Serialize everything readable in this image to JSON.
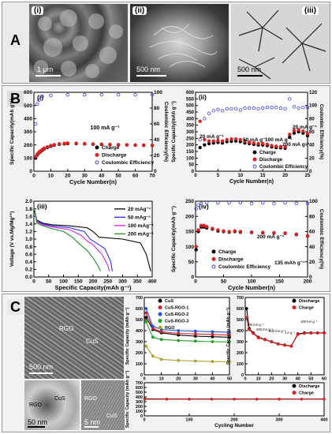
{
  "panelA": {
    "letter": "A",
    "images": [
      {
        "label": "(i)",
        "scale": "1 μm"
      },
      {
        "label": "(ii)",
        "scale": "500 nm"
      },
      {
        "label": "(iii)",
        "scale": "500 nm"
      }
    ]
  },
  "panelB": {
    "letter": "B",
    "i": {
      "label": "(i)",
      "xlabel": "Cycle Number(n)",
      "ylabel": "Specific Capacity(mAh g⁻¹)",
      "y2label": "Coulombic Efficiency(%)",
      "annotation": "100 mA g⁻¹",
      "legend": [
        "Charge",
        "Discharge",
        "Coulombic Efficiency"
      ],
      "xticks": [
        "0",
        "10",
        "20",
        "30",
        "40",
        "50",
        "60",
        "70"
      ],
      "yticks": [
        "0",
        "100",
        "200",
        "300",
        "400",
        "500",
        "600"
      ],
      "y2ticks": [
        "0",
        "20",
        "40",
        "60",
        "80",
        "100"
      ]
    },
    "ii": {
      "label": "(ii)",
      "xlabel": "Cycle Number(n)",
      "ylabel": "Specific Capacity(mAh g⁻¹)",
      "y2label": "Coulombic Efficiency(%)",
      "rates": [
        "20 mA g⁻¹",
        "50 mA g⁻¹",
        "100 mA g⁻¹",
        "200 mA g⁻¹",
        "20 mA g⁻¹"
      ],
      "legend": [
        "Charge",
        "Discharge",
        "Coulombic Efficiency"
      ],
      "xticks": [
        "0",
        "5",
        "10",
        "15",
        "20",
        "25"
      ],
      "yticks": [
        "0",
        "50",
        "100",
        "150",
        "200",
        "250",
        "300",
        "350",
        "400",
        "450",
        "500",
        "550",
        "600"
      ],
      "y2ticks": [
        "0",
        "20",
        "40",
        "60",
        "80",
        "100",
        "120"
      ]
    },
    "iii": {
      "label": "(iii)",
      "xlabel": "Specific Capacity(mAh g⁻¹)",
      "ylabel": "Voltage (V vs.Mg/Mg²⁺)",
      "legend": [
        "20 mAg⁻¹",
        "50 mAg⁻¹",
        "100 mAg⁻¹",
        "200 mAg⁻¹"
      ],
      "xticks": [
        "0",
        "50",
        "100",
        "150",
        "200",
        "250",
        "300",
        "350",
        "400"
      ],
      "yticks": [
        "0.0",
        "0.2",
        "0.4",
        "0.6",
        "0.8",
        "1.0",
        "1.2",
        "1.4",
        "1.6",
        "1.8",
        "2.0"
      ]
    },
    "iv": {
      "label": "(iv)",
      "xlabel": "Cycle Number(n)",
      "ylabel": "Specific Capacity(mAh g⁻¹)",
      "y2label": "Coulombic Efficiency(%)",
      "annotation1": "200 mA g⁻¹",
      "annotation2": "135 mAh g⁻¹",
      "legend": [
        "Charge",
        "Discharge",
        "Coulombic Efficiency"
      ],
      "xticks": [
        "0",
        "50",
        "100",
        "150",
        "200"
      ],
      "yticks": [
        "0",
        "50",
        "100",
        "150",
        "200",
        "250"
      ],
      "y2ticks": [
        "0",
        "20",
        "40",
        "60",
        "80",
        "100"
      ]
    }
  },
  "panelC": {
    "letter": "C",
    "sem": {
      "labels": [
        "RGO",
        "CuS"
      ],
      "scale": "500 nm"
    },
    "tem1": {
      "labels": [
        "RGO",
        "CuS"
      ],
      "scale": "50 nm"
    },
    "tem2": {
      "labels": [
        "RGO",
        "CuS"
      ],
      "scale": "5 nm"
    },
    "c1": {
      "xlabel": "Cycling Number",
      "ylabel": "Specific Capacity (mAh g⁻¹)",
      "legend": [
        "CuS",
        "CuS-RGO-1",
        "CuS-RGO-2",
        "CuS-RGO-3",
        "RGO"
      ],
      "xticks": [
        "0",
        "10",
        "20",
        "30",
        "40",
        "50"
      ],
      "yticks": [
        "0",
        "100",
        "200",
        "300",
        "400",
        "500",
        "600",
        "700"
      ]
    },
    "c2": {
      "xlabel": "Cycling Number",
      "ylabel": "Specific Capacity (mAh g⁻¹)",
      "legend": [
        "Discharge",
        "Charge"
      ],
      "rates": [
        "100 mA g⁻¹",
        "200 mA g⁻¹",
        "500 mA g⁻¹",
        "1 A g⁻¹",
        "100 mA g⁻¹"
      ],
      "xticks": [
        "0",
        "10",
        "20",
        "30",
        "40",
        "50",
        "60"
      ],
      "yticks": [
        "0",
        "100",
        "200",
        "300",
        "400",
        "500",
        "600",
        "700"
      ]
    },
    "c3": {
      "xlabel": "Cycling Number",
      "ylabel": "Specific Capacity (mAh g⁻¹)",
      "legend": [
        "Discharge",
        "Charge"
      ],
      "xticks": [
        "0",
        "100",
        "200",
        "300",
        "400"
      ],
      "yticks": [
        "0",
        "100",
        "200",
        "300",
        "400",
        "500",
        "600",
        "700"
      ]
    }
  },
  "chart_data": [
    {
      "id": "B-i",
      "type": "scatter",
      "xlim": [
        0,
        70
      ],
      "ylim": [
        0,
        600
      ],
      "y2lim": [
        0,
        100
      ],
      "series": [
        {
          "name": "Charge",
          "color": "#000000",
          "x": [
            1,
            2,
            3,
            4,
            5,
            6,
            8,
            10,
            12,
            15,
            18,
            20,
            25,
            30,
            35,
            40,
            45,
            50,
            55,
            60,
            65,
            70
          ],
          "y": [
            100,
            125,
            140,
            150,
            160,
            170,
            180,
            190,
            198,
            205,
            208,
            210,
            210,
            208,
            205,
            204,
            202,
            200,
            200,
            198,
            197,
            196
          ]
        },
        {
          "name": "Discharge",
          "color": "#e02020",
          "x": [
            1,
            2,
            3,
            4,
            5,
            6,
            8,
            10,
            12,
            15,
            18,
            20,
            25,
            30,
            35,
            40,
            45,
            50,
            55,
            60,
            65,
            70
          ],
          "y": [
            110,
            130,
            145,
            155,
            165,
            175,
            185,
            195,
            202,
            208,
            212,
            214,
            213,
            210,
            207,
            206,
            204,
            202,
            201,
            200,
            199,
            198
          ]
        },
        {
          "name": "Coulombic Efficiency",
          "color": "#4040e0",
          "axis": "y2",
          "x": [
            1,
            2,
            3,
            5,
            10,
            20,
            30,
            40,
            50,
            60,
            70
          ],
          "y": [
            60,
            85,
            90,
            95,
            96,
            97,
            97,
            97,
            97,
            97,
            97
          ]
        }
      ]
    },
    {
      "id": "B-ii",
      "type": "scatter",
      "xlim": [
        0,
        25
      ],
      "ylim": [
        0,
        600
      ],
      "y2lim": [
        0,
        120
      ],
      "series": [
        {
          "name": "Charge",
          "color": "#000000",
          "x": [
            1,
            2,
            3,
            4,
            5,
            6,
            7,
            8,
            9,
            10,
            11,
            12,
            13,
            14,
            15,
            16,
            17,
            18,
            19,
            20,
            21,
            22,
            23,
            24,
            25
          ],
          "y": [
            180,
            200,
            210,
            215,
            220,
            215,
            225,
            228,
            230,
            225,
            215,
            210,
            205,
            200,
            200,
            195,
            185,
            180,
            178,
            175,
            260,
            290,
            300,
            290,
            270
          ]
        },
        {
          "name": "Discharge",
          "color": "#e02020",
          "x": [
            1,
            2,
            3,
            4,
            5,
            6,
            7,
            8,
            9,
            10,
            11,
            12,
            13,
            14,
            15,
            16,
            17,
            18,
            19,
            20,
            21,
            22,
            23,
            24,
            25
          ],
          "y": [
            380,
            240,
            230,
            230,
            232,
            230,
            240,
            245,
            245,
            240,
            230,
            220,
            215,
            210,
            210,
            205,
            195,
            190,
            188,
            185,
            280,
            310,
            315,
            305,
            285
          ]
        },
        {
          "name": "Coulombic Efficiency",
          "color": "#4040e0",
          "axis": "y2",
          "x": [
            1,
            2,
            3,
            4,
            5,
            6,
            7,
            8,
            9,
            10,
            11,
            12,
            13,
            14,
            15,
            16,
            17,
            18,
            19,
            20,
            21,
            22,
            23,
            24,
            25
          ],
          "y": [
            48,
            80,
            88,
            92,
            94,
            92,
            95,
            95,
            95,
            93,
            96,
            96,
            96,
            95,
            96,
            97,
            97,
            97,
            96,
            95,
            110,
            98,
            96,
            97,
            97
          ]
        }
      ]
    },
    {
      "id": "B-iii",
      "type": "line",
      "xlim": [
        0,
        400
      ],
      "ylim": [
        0,
        2.0
      ],
      "series": [
        {
          "name": "20 mAg⁻¹",
          "color": "#000000",
          "x": [
            0,
            10,
            30,
            60,
            120,
            180,
            200,
            220,
            300,
            360,
            380,
            390,
            395
          ],
          "y": [
            1.8,
            1.5,
            1.42,
            1.38,
            1.35,
            1.3,
            1.2,
            1.05,
            1.0,
            0.9,
            0.6,
            0.3,
            0.15
          ]
        },
        {
          "name": "50 mAg⁻¹",
          "color": "#3030e0",
          "x": [
            0,
            10,
            30,
            60,
            120,
            170,
            190,
            210,
            240,
            260,
            265
          ],
          "y": [
            1.85,
            1.48,
            1.4,
            1.35,
            1.3,
            1.2,
            1.0,
            0.9,
            0.75,
            0.4,
            0.15
          ]
        },
        {
          "name": "100 mAg⁻¹",
          "color": "#e020e0",
          "x": [
            0,
            10,
            30,
            60,
            120,
            160,
            180,
            200,
            230,
            250,
            255
          ],
          "y": [
            1.85,
            1.45,
            1.38,
            1.32,
            1.25,
            1.1,
            0.95,
            0.85,
            0.6,
            0.3,
            0.15
          ]
        },
        {
          "name": "200 mAg⁻¹",
          "color": "#209020",
          "x": [
            0,
            10,
            30,
            60,
            100,
            130,
            150,
            180,
            200,
            220,
            225
          ],
          "y": [
            1.9,
            1.42,
            1.35,
            1.28,
            1.2,
            1.05,
            0.9,
            0.7,
            0.5,
            0.25,
            0.15
          ]
        }
      ]
    },
    {
      "id": "B-iv",
      "type": "scatter",
      "xlim": [
        0,
        200
      ],
      "ylim": [
        0,
        250
      ],
      "y2lim": [
        0,
        100
      ],
      "series": [
        {
          "name": "Charge",
          "color": "#000000",
          "x": [
            1,
            5,
            10,
            15,
            20,
            30,
            40,
            50,
            60,
            70,
            80,
            100,
            120,
            140,
            160,
            180,
            200
          ],
          "y": [
            90,
            150,
            165,
            165,
            162,
            158,
            152,
            150,
            148,
            150,
            148,
            147,
            146,
            145,
            144,
            140,
            135
          ]
        },
        {
          "name": "Discharge",
          "color": "#e02020",
          "x": [
            1,
            5,
            10,
            15,
            20,
            30,
            40,
            50,
            60,
            70,
            80,
            100,
            120,
            140,
            160,
            180,
            200
          ],
          "y": [
            100,
            155,
            170,
            170,
            166,
            160,
            155,
            152,
            150,
            152,
            150,
            148,
            147,
            146,
            145,
            141,
            136
          ]
        },
        {
          "name": "Coulombic Efficiency",
          "color": "#4040e0",
          "axis": "y2",
          "x": [
            1,
            5,
            10,
            20,
            40,
            60,
            80,
            100,
            120,
            140,
            160,
            180,
            200
          ],
          "y": [
            90,
            95,
            97,
            98,
            98,
            98,
            98,
            97,
            98,
            97,
            98,
            97,
            97
          ]
        }
      ]
    },
    {
      "id": "C-1",
      "type": "scatter",
      "xlim": [
        0,
        50
      ],
      "ylim": [
        0,
        700
      ],
      "series": [
        {
          "name": "CuS",
          "color": "#000000",
          "x": [
            1,
            5,
            10,
            20,
            30,
            40,
            50
          ],
          "y": [
            520,
            410,
            380,
            360,
            350,
            345,
            340
          ]
        },
        {
          "name": "CuS-RGO-1",
          "color": "#e02020",
          "x": [
            1,
            5,
            10,
            20,
            30,
            40,
            50
          ],
          "y": [
            560,
            420,
            390,
            375,
            370,
            365,
            360
          ]
        },
        {
          "name": "CuS-RGO-2",
          "color": "#2050e0",
          "x": [
            1,
            5,
            10,
            20,
            30,
            40,
            50
          ],
          "y": [
            600,
            440,
            410,
            400,
            395,
            390,
            385
          ]
        },
        {
          "name": "CuS-RGO-3",
          "color": "#20a020",
          "x": [
            1,
            5,
            10,
            20,
            30,
            40,
            50
          ],
          "y": [
            480,
            340,
            320,
            310,
            305,
            300,
            298
          ]
        },
        {
          "name": "RGO",
          "color": "#b0a030",
          "x": [
            1,
            5,
            10,
            20,
            30,
            40,
            50
          ],
          "y": [
            260,
            170,
            140,
            130,
            125,
            120,
            118
          ]
        }
      ]
    },
    {
      "id": "C-2",
      "type": "scatter",
      "xlim": [
        0,
        60
      ],
      "ylim": [
        0,
        700
      ],
      "series": [
        {
          "name": "Discharge",
          "color": "#000000",
          "x": [
            1,
            3,
            6,
            10,
            15,
            20,
            25,
            30,
            35,
            40,
            45,
            50,
            55,
            60
          ],
          "y": [
            600,
            420,
            380,
            340,
            320,
            300,
            280,
            270,
            260,
            370,
            380,
            380,
            380,
            380
          ]
        },
        {
          "name": "Charge",
          "color": "#e02020",
          "x": [
            1,
            3,
            6,
            10,
            15,
            20,
            25,
            30,
            35,
            40,
            45,
            50,
            55,
            60
          ],
          "y": [
            520,
            410,
            375,
            335,
            318,
            298,
            278,
            268,
            258,
            365,
            375,
            378,
            378,
            378
          ]
        }
      ]
    },
    {
      "id": "C-3",
      "type": "scatter",
      "xlim": [
        0,
        400
      ],
      "ylim": [
        0,
        700
      ],
      "series": [
        {
          "name": "Discharge",
          "color": "#000000",
          "x": [
            1,
            50,
            100,
            150,
            200,
            250,
            300,
            350,
            400
          ],
          "y": [
            360,
            355,
            355,
            355,
            355,
            355,
            355,
            355,
            355
          ]
        },
        {
          "name": "Charge",
          "color": "#e02020",
          "x": [
            1,
            50,
            100,
            150,
            200,
            250,
            300,
            350,
            400
          ],
          "y": [
            350,
            350,
            350,
            350,
            350,
            350,
            350,
            350,
            350
          ]
        }
      ]
    }
  ]
}
